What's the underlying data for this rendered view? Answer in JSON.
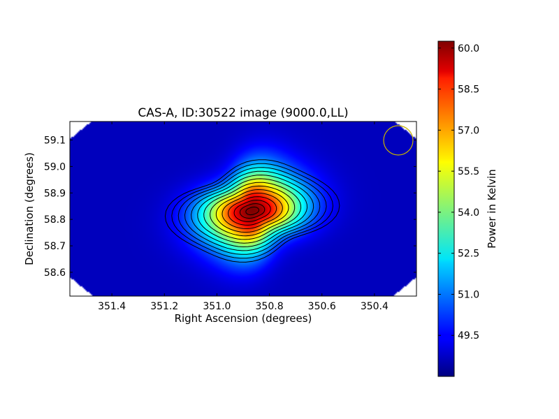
{
  "chart_data": {
    "type": "heatmap",
    "title": "CAS-A, ID:30522 image (9000.0,LL)",
    "xlabel": "Right Ascension (degrees)",
    "ylabel": "Declination (degrees)",
    "x_ticks": [
      351.4,
      351.2,
      351.0,
      350.8,
      350.6,
      350.4
    ],
    "x_tick_labels": [
      "351.4",
      "351.2",
      "351.0",
      "350.8",
      "350.6",
      "350.4"
    ],
    "y_ticks": [
      58.6,
      58.7,
      58.8,
      58.9,
      59.0,
      59.1
    ],
    "y_tick_labels": [
      "58.6",
      "58.7",
      "58.8",
      "58.9",
      "59.0",
      "59.1"
    ],
    "xlim": [
      351.56,
      350.24
    ],
    "ylim": [
      58.51,
      59.17
    ],
    "x_inverted": true,
    "source_peak": {
      "ra": 350.865,
      "dec": 58.832
    },
    "colorbar": {
      "label": "Power in Kelvin",
      "range": [
        48.0,
        60.25
      ],
      "ticks": [
        49.5,
        51.0,
        52.5,
        54.0,
        55.5,
        57.0,
        58.5,
        60.0
      ],
      "tick_labels": [
        "49.5",
        "51.0",
        "52.5",
        "54.0",
        "55.5",
        "57.0",
        "58.5",
        "60.0"
      ],
      "colormap": "jet"
    },
    "contour_levels": 14,
    "beam_marker": {
      "color": "#c8b400"
    },
    "grid": false
  }
}
